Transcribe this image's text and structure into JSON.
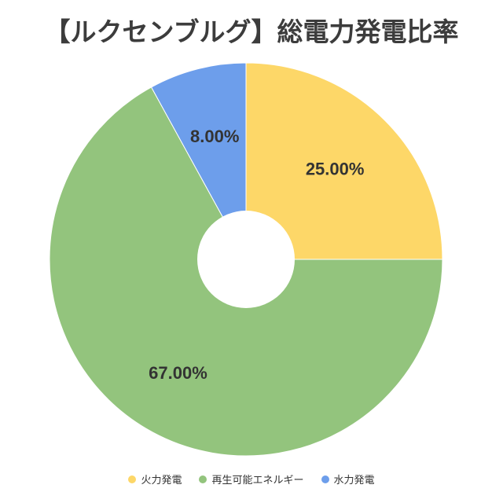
{
  "chart_data": {
    "type": "pie",
    "title": "【ルクセンブルグ】総電力発電比率",
    "categories": [
      "火力発電",
      "再生可能エネルギー",
      "水力発電"
    ],
    "values": [
      25.0,
      67.0,
      8.0
    ],
    "labels": [
      "25.00%",
      "67.00%",
      "8.00%"
    ],
    "colors": [
      "#FDD768",
      "#93C47D",
      "#6D9EEB"
    ],
    "donut": true,
    "legend_position": "bottom"
  }
}
